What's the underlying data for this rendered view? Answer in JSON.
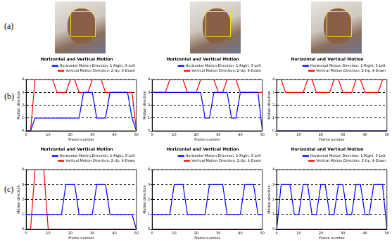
{
  "row_labels": [
    "(a)",
    "(b)",
    "(c)"
  ],
  "chart_data": [
    {
      "type": "line",
      "title": "Horizontal and Vertical Motion",
      "x_label": "Frame number",
      "y_label": "Motion direction",
      "x": [
        0,
        2,
        4,
        6,
        8,
        10,
        12,
        14,
        16,
        18,
        20,
        22,
        24,
        26,
        28,
        30,
        32,
        34,
        36,
        38,
        40,
        42,
        44,
        46,
        48,
        50
      ],
      "xlim": [
        0,
        50
      ],
      "xticks": [
        0,
        10,
        20,
        30,
        40,
        50
      ],
      "ylim": [
        0,
        4
      ],
      "yticks": [
        0,
        1,
        2,
        3,
        4
      ],
      "grid": "y",
      "legend": "upper right",
      "series": [
        {
          "name": "Horizontal Motion Direction: 1-Right, 3-Left",
          "color": "#0000ff",
          "values": [
            0,
            0,
            1,
            1,
            1,
            1,
            1,
            1,
            1,
            1,
            1,
            1,
            1,
            3,
            3,
            3,
            1,
            1,
            1,
            3,
            3,
            3,
            3,
            3,
            1,
            0
          ]
        },
        {
          "name": "Vertical Motion Direction: 2-Up, 4-Down",
          "color": "#ff0000",
          "values": [
            0,
            0,
            4,
            4,
            4,
            4,
            4,
            3,
            3,
            3,
            4,
            4,
            3,
            3,
            3,
            4,
            4,
            4,
            3,
            3,
            3,
            3,
            3,
            3,
            3,
            0
          ]
        }
      ]
    },
    {
      "type": "line",
      "title": "Horizontal and Vertical Motion",
      "x_label": "Frame number",
      "y_label": "Motion direction",
      "x": [
        0,
        2,
        4,
        6,
        8,
        10,
        12,
        14,
        16,
        18,
        20,
        22,
        24,
        26,
        28,
        30,
        32,
        34,
        36,
        38,
        40,
        42,
        44,
        46,
        48,
        50
      ],
      "xlim": [
        0,
        50
      ],
      "xticks": [
        0,
        10,
        20,
        30,
        40,
        50
      ],
      "ylim": [
        0,
        4
      ],
      "yticks": [
        0,
        1,
        2,
        3,
        4
      ],
      "grid": "y",
      "legend": "upper right",
      "series": [
        {
          "name": "Horizontal Motion Direction: 1-Right, 3-Left",
          "color": "#0000ff",
          "values": [
            3,
            3,
            3,
            3,
            3,
            3,
            3,
            3,
            3,
            3,
            3,
            3,
            1,
            1,
            3,
            3,
            3,
            3,
            1,
            1,
            3,
            3,
            3,
            3,
            3,
            0
          ]
        },
        {
          "name": "Vertical Motion Direction: 2-Up, 4-Down",
          "color": "#ff0000",
          "values": [
            3,
            3,
            3,
            3,
            4,
            4,
            4,
            4,
            3,
            3,
            3,
            4,
            4,
            4,
            4,
            3,
            3,
            4,
            4,
            4,
            3,
            3,
            3,
            3,
            3,
            3
          ]
        }
      ]
    },
    {
      "type": "line",
      "title": "Horizontal and Vertical Motion",
      "x_label": "Frame number",
      "y_label": "Motion direction",
      "x": [
        0,
        2,
        4,
        6,
        8,
        10,
        12,
        14,
        16,
        18,
        20,
        22,
        24,
        26,
        28,
        30,
        32,
        34,
        36,
        38,
        40,
        42,
        44,
        46,
        48,
        50
      ],
      "xlim": [
        0,
        50
      ],
      "xticks": [
        0,
        10,
        20,
        30,
        40,
        50
      ],
      "ylim": [
        0,
        4
      ],
      "yticks": [
        0,
        1,
        2,
        3,
        4
      ],
      "grid": "y",
      "legend": "upper right",
      "series": [
        {
          "name": "Horizontal Motion Direction: 1-Right, 3-Left",
          "color": "#0000ff",
          "values": [
            0,
            0,
            0,
            0,
            0,
            0,
            0,
            0,
            0,
            0,
            0,
            0,
            0,
            0,
            0,
            0,
            0,
            0,
            0,
            0,
            0,
            0,
            0,
            0,
            0,
            0
          ]
        },
        {
          "name": "Vertical Motion Direction: 2-Up, 4-Down",
          "color": "#ff0000",
          "values": [
            4,
            4,
            3,
            3,
            3,
            3,
            3,
            4,
            4,
            3,
            3,
            3,
            3,
            4,
            4,
            3,
            3,
            3,
            4,
            4,
            3,
            3,
            3,
            3,
            4,
            4
          ]
        }
      ]
    },
    {
      "type": "line",
      "title": "Horizontal and Vertical Motion",
      "x_label": "Frame number",
      "y_label": "Motion direction",
      "x": [
        0,
        2,
        4,
        6,
        8,
        10,
        12,
        14,
        16,
        18,
        20,
        22,
        24,
        26,
        28,
        30,
        32,
        34,
        36,
        38,
        40,
        42,
        44,
        46,
        48,
        50
      ],
      "xlim": [
        0,
        50
      ],
      "xticks": [
        0,
        10,
        20,
        30,
        40,
        50
      ],
      "ylim": [
        0,
        4
      ],
      "yticks": [
        0,
        1,
        2,
        3,
        4
      ],
      "grid": "y",
      "legend": "upper right",
      "series": [
        {
          "name": "Horizontal Motion Direction: 1-Right, 3-Left",
          "color": "#0000ff",
          "values": [
            1,
            1,
            1,
            1,
            1,
            1,
            1,
            1,
            1,
            3,
            3,
            3,
            1,
            1,
            1,
            1,
            3,
            3,
            3,
            1,
            1,
            1,
            1,
            1,
            1,
            0
          ]
        },
        {
          "name": "Vertical Motion Direction: 2-Up, 4-Down",
          "color": "#ff0000",
          "values": [
            0,
            0,
            4,
            4,
            4,
            0,
            0,
            0,
            0,
            0,
            0,
            0,
            0,
            0,
            0,
            0,
            0,
            0,
            0,
            0,
            0,
            0,
            0,
            0,
            0,
            0
          ]
        }
      ]
    },
    {
      "type": "line",
      "title": "Horizontal and Vertical Motion",
      "x_label": "Frame number",
      "y_label": "Motion direction",
      "x": [
        0,
        2,
        4,
        6,
        8,
        10,
        12,
        14,
        16,
        18,
        20,
        22,
        24,
        26,
        28,
        30,
        32,
        34,
        36,
        38,
        40,
        42,
        44,
        46,
        48,
        50
      ],
      "xlim": [
        0,
        50
      ],
      "xticks": [
        0,
        10,
        20,
        30,
        40,
        50
      ],
      "ylim": [
        0,
        4
      ],
      "yticks": [
        0,
        1,
        2,
        3,
        4
      ],
      "grid": "y",
      "legend": "upper right",
      "series": [
        {
          "name": "Horizontal Motion Direction: 1-Right, 3-Left",
          "color": "#0000ff",
          "values": [
            1,
            1,
            1,
            1,
            1,
            3,
            3,
            3,
            1,
            1,
            1,
            1,
            1,
            3,
            3,
            3,
            3,
            1,
            1,
            1,
            1,
            3,
            3,
            3,
            1,
            1
          ]
        },
        {
          "name": "Vertical Motion Direction: 2-Up, 4-Down",
          "color": "#ff0000",
          "values": [
            0,
            0,
            0,
            0,
            0,
            0,
            0,
            0,
            0,
            0,
            0,
            0,
            0,
            0,
            0,
            0,
            0,
            0,
            0,
            0,
            0,
            0,
            0,
            0,
            0,
            0
          ]
        }
      ]
    },
    {
      "type": "line",
      "title": "Horizontal and Vertical Motion",
      "x_label": "Frame number",
      "y_label": "Motion direction",
      "x": [
        0,
        2,
        4,
        6,
        8,
        10,
        12,
        14,
        16,
        18,
        20,
        22,
        24,
        26,
        28,
        30,
        32,
        34,
        36,
        38,
        40,
        42,
        44,
        46,
        48,
        50
      ],
      "xlim": [
        0,
        50
      ],
      "xticks": [
        0,
        10,
        20,
        30,
        40,
        50
      ],
      "ylim": [
        0,
        4
      ],
      "yticks": [
        0,
        1,
        2,
        3,
        4
      ],
      "grid": "y",
      "legend": "upper right",
      "series": [
        {
          "name": "Horizontal Motion Direction: 1-Right, 3-Left",
          "color": "#0000ff",
          "values": [
            0,
            3,
            3,
            3,
            1,
            1,
            3,
            3,
            1,
            1,
            3,
            3,
            1,
            1,
            3,
            3,
            1,
            1,
            3,
            3,
            1,
            1,
            3,
            3,
            3,
            0
          ]
        },
        {
          "name": "Vertical Motion Direction: 2-Up, 4-Down",
          "color": "#ff0000",
          "values": [
            0,
            0,
            0,
            0,
            0,
            0,
            0,
            0,
            0,
            0,
            0,
            0,
            0,
            0,
            0,
            0,
            0,
            0,
            0,
            0,
            0,
            0,
            0,
            0,
            0,
            0
          ]
        }
      ]
    }
  ]
}
